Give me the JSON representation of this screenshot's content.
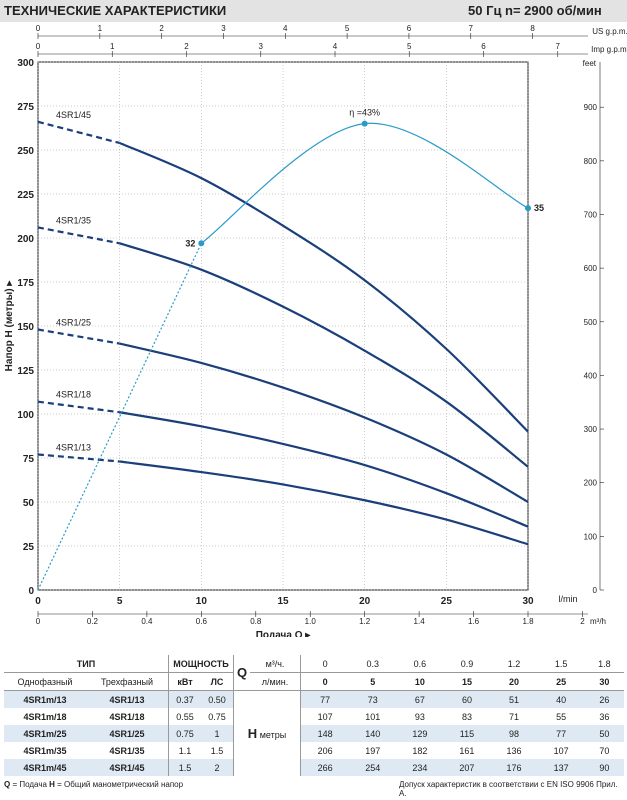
{
  "header": {
    "title": "ТЕХНИЧЕСКИЕ ХАРАКТЕРИСТИКИ",
    "frequency": "50 Гц",
    "speed": "n= 2900 об/мин"
  },
  "colors": {
    "pump_curve": "#1a3f7a",
    "efficiency": "#2a9bc9",
    "axis": "#222222",
    "header_bg": "#e3e3e3",
    "row_highlight": "#dfe9f3"
  },
  "chart_data": {
    "type": "line",
    "xlabel": "Подача Q",
    "ylabel": "Напор H (метры)",
    "x_unit": "l/min",
    "x": [
      0,
      5,
      10,
      15,
      20,
      25,
      30
    ],
    "xlim": [
      0,
      30
    ],
    "ylim": [
      0,
      300
    ],
    "grid": true,
    "x_ticks": [
      "0",
      "5",
      "10",
      "15",
      "20",
      "25",
      "30"
    ],
    "y_ticks": [
      "0",
      "25",
      "50",
      "75",
      "100",
      "125",
      "150",
      "175",
      "200",
      "225",
      "250",
      "275",
      "300"
    ],
    "secondary_axes": {
      "top_us": {
        "label": "US g.p.m.",
        "ticks": [
          "0",
          "1",
          "2",
          "3",
          "4",
          "5",
          "6",
          "7",
          "8"
        ],
        "max": 8
      },
      "top_imp": {
        "label": "Imp g.p.m.",
        "ticks": [
          "0",
          "1",
          "2",
          "3",
          "4",
          "5",
          "6",
          "7"
        ],
        "max": 7
      },
      "bottom_m3h": {
        "label": "m³/h",
        "ticks": [
          "0",
          "0.2",
          "0.4",
          "0.6",
          "0.8",
          "1.0",
          "1.2",
          "1.4",
          "1.6",
          "1.8",
          "2"
        ],
        "max": 2
      },
      "right_feet": {
        "label": "feet",
        "ticks": [
          "0",
          "100",
          "200",
          "300",
          "400",
          "500",
          "600",
          "700",
          "800",
          "900"
        ],
        "max": 900
      }
    },
    "series": [
      {
        "name": "4SR1/13",
        "values": [
          77,
          73,
          67,
          60,
          51,
          40,
          26
        ],
        "dashed_to": 5
      },
      {
        "name": "4SR1/18",
        "values": [
          107,
          101,
          93,
          83,
          71,
          55,
          36
        ],
        "dashed_to": 5
      },
      {
        "name": "4SR1/25",
        "values": [
          148,
          140,
          129,
          115,
          98,
          77,
          50
        ],
        "dashed_to": 5
      },
      {
        "name": "4SR1/35",
        "values": [
          206,
          197,
          182,
          161,
          136,
          107,
          70
        ],
        "dashed_to": 5
      },
      {
        "name": "4SR1/45",
        "values": [
          266,
          254,
          234,
          207,
          176,
          137,
          90
        ],
        "dashed_to": 5
      }
    ],
    "efficiency_curve": {
      "label": "η =43%",
      "points": [
        {
          "q": 0,
          "h": 0,
          "label": ""
        },
        {
          "q": 10,
          "h": 197,
          "label": "32"
        },
        {
          "q": 20,
          "h": 265,
          "label": ""
        },
        {
          "q": 30,
          "h": 217,
          "label": "35"
        }
      ]
    }
  },
  "table": {
    "type_header": "ТИП",
    "power_header": "МОЩНОСТЬ",
    "single_phase": "Однофазный",
    "three_phase": "Трехфазный",
    "kw": "кВт",
    "hp": "ЛС",
    "q_symbol": "Q",
    "q_unit_m3h": "м³/ч.",
    "q_unit_lmin": "л/мин.",
    "q_m3h": [
      "0",
      "0.3",
      "0.6",
      "0.9",
      "1.2",
      "1.5",
      "1.8"
    ],
    "q_lmin": [
      "0",
      "5",
      "10",
      "15",
      "20",
      "25",
      "30"
    ],
    "h_symbol": "H",
    "h_unit": "метры",
    "rows": [
      {
        "mono": "4SR1m/13",
        "tri": "4SR1/13",
        "kw": "0.37",
        "hp": "0.50",
        "h": [
          "77",
          "73",
          "67",
          "60",
          "51",
          "40",
          "26"
        ]
      },
      {
        "mono": "4SR1m/18",
        "tri": "4SR1/18",
        "kw": "0.55",
        "hp": "0.75",
        "h": [
          "107",
          "101",
          "93",
          "83",
          "71",
          "55",
          "36"
        ]
      },
      {
        "mono": "4SR1m/25",
        "tri": "4SR1/25",
        "kw": "0.75",
        "hp": "1",
        "h": [
          "148",
          "140",
          "129",
          "115",
          "98",
          "77",
          "50"
        ]
      },
      {
        "mono": "4SR1m/35",
        "tri": "4SR1/35",
        "kw": "1.1",
        "hp": "1.5",
        "h": [
          "206",
          "197",
          "182",
          "161",
          "136",
          "107",
          "70"
        ]
      },
      {
        "mono": "4SR1m/45",
        "tri": "4SR1/45",
        "kw": "1.5",
        "hp": "2",
        "h": [
          "266",
          "254",
          "234",
          "207",
          "176",
          "137",
          "90"
        ]
      }
    ]
  },
  "footer": {
    "legend_q": "Q",
    "legend_q_text": " = Подача  ",
    "legend_h": "H",
    "legend_h_text": " = Общий манометрический напор",
    "norm": "Допуск характеристик в соответствии с EN ISO 9906 Прил. A."
  }
}
